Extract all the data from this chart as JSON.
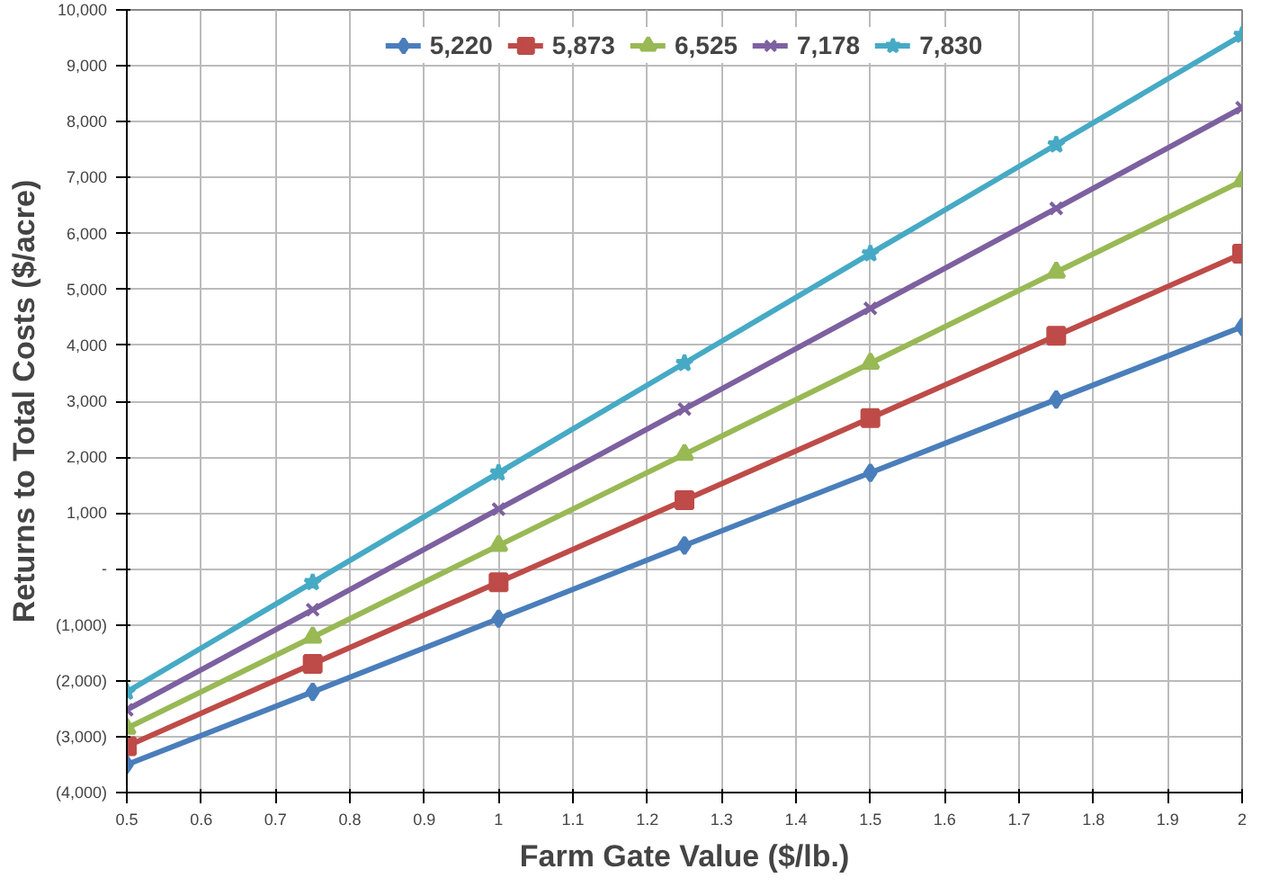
{
  "chart_data": {
    "type": "line",
    "xlabel": "Farm Gate Value ($/lb.)",
    "ylabel": "Returns to Total Costs ($/acre)",
    "x": [
      0.5,
      0.75,
      1,
      1.25,
      1.5,
      1.75,
      2
    ],
    "series": [
      {
        "name": "5,220",
        "color": "#4a7ebb",
        "marker": "diamond",
        "values": [
          -3500,
          -2200,
          -890,
          420,
          1720,
          3030,
          4330
        ]
      },
      {
        "name": "5,873",
        "color": "#be4b48",
        "marker": "square",
        "values": [
          -3170,
          -1700,
          -240,
          1230,
          2700,
          4170,
          5640
        ]
      },
      {
        "name": "6,525",
        "color": "#98b954",
        "marker": "triangle",
        "values": [
          -2850,
          -1220,
          420,
          2050,
          3680,
          5310,
          6940
        ]
      },
      {
        "name": "7,178",
        "color": "#7d60a0",
        "marker": "cross",
        "values": [
          -2520,
          -730,
          1070,
          2860,
          4660,
          6450,
          8250
        ]
      },
      {
        "name": "7,830",
        "color": "#46aac5",
        "marker": "star",
        "values": [
          -2200,
          -240,
          1720,
          3680,
          5640,
          7590,
          9550
        ]
      }
    ],
    "xlim": [
      0.5,
      2
    ],
    "ylim": [
      -4000,
      10000
    ],
    "xticks": [
      0.5,
      0.6,
      0.7,
      0.8,
      0.9,
      1,
      1.1,
      1.2,
      1.3,
      1.4,
      1.5,
      1.6,
      1.7,
      1.8,
      1.9,
      2
    ],
    "yticks": [
      {
        "value": -4000,
        "label": "(4,000)"
      },
      {
        "value": -3000,
        "label": "(3,000)"
      },
      {
        "value": -2000,
        "label": "(2,000)"
      },
      {
        "value": -1000,
        "label": "(1,000)"
      },
      {
        "value": 0,
        "label": "-"
      },
      {
        "value": 1000,
        "label": "1,000"
      },
      {
        "value": 2000,
        "label": "2,000"
      },
      {
        "value": 3000,
        "label": "3,000"
      },
      {
        "value": 4000,
        "label": "4,000"
      },
      {
        "value": 5000,
        "label": "5,000"
      },
      {
        "value": 6000,
        "label": "6,000"
      },
      {
        "value": 7000,
        "label": "7,000"
      },
      {
        "value": 8000,
        "label": "8,000"
      },
      {
        "value": 9000,
        "label": "9,000"
      },
      {
        "value": 10000,
        "label": "10,000"
      }
    ],
    "grid": true,
    "legend": "top",
    "line_style": "solid"
  }
}
